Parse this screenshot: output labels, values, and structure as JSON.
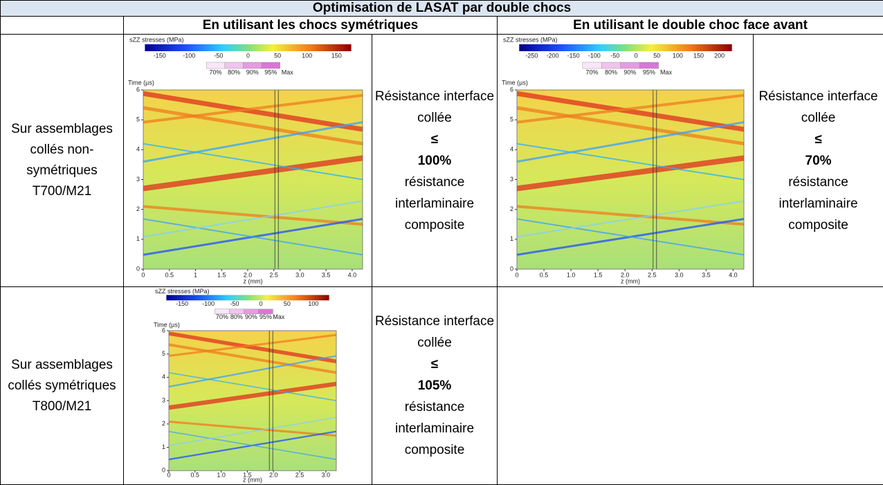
{
  "header": {
    "title": "Optimisation de LASAT par double chocs"
  },
  "table": {
    "column_headers": [
      "En utilisant les chocs symétriques",
      "En utilisant le double choc face avant"
    ],
    "rows": [
      {
        "label": "Sur assemblages collés non-symétriques T700/M21",
        "cells": [
          {
            "plot": {
              "title": "sZZ stresses (MPa)",
              "colorbar_lim": [
                -175,
                175
              ],
              "colorbar_ticks": [
                -150,
                -100,
                -50,
                0,
                50,
                100,
                150
              ],
              "threshold_labels": [
                "70%",
                "80%",
                "90%",
                "95%",
                "Max"
              ],
              "y_label": "Time (µs)",
              "ylim": [
                0,
                6
              ],
              "yticks": [
                0,
                1,
                2,
                3,
                4,
                5,
                6
              ],
              "x_label": "z (mm)",
              "xlim": [
                0,
                4.2
              ],
              "xticks": [
                0,
                0.5,
                1,
                1.5,
                {
                  "value": 2,
                  "label": "2.0"
                },
                2.5,
                {
                  "value": 3,
                  "label": "3.0"
                },
                3.5,
                {
                  "value": 4,
                  "label": "4.0"
                }
              ]
            },
            "result": {
              "before": "Résistance interface collée",
              "sign": "≤",
              "value": "100%",
              "after": "résistance interlaminaire composite"
            }
          },
          {
            "plot": {
              "title": "sZZ stresses (MPa)",
              "colorbar_lim": [
                -280,
                230
              ],
              "colorbar_ticks": [
                -250,
                -200,
                -150,
                -100,
                -50,
                0,
                50,
                100,
                150,
                200
              ],
              "threshold_labels": [
                "70%",
                "80%",
                "90%",
                "95%",
                "Max"
              ],
              "y_label": "Time (µs)",
              "ylim": [
                0,
                6
              ],
              "yticks": [
                0,
                1,
                2,
                3,
                4,
                5,
                6
              ],
              "x_label": "z (mm)",
              "xlim": [
                0,
                4.2
              ],
              "xticks": [
                0,
                0.5,
                {
                  "value": 1,
                  "label": "1.0"
                },
                1.5,
                {
                  "value": 2,
                  "label": "2.0"
                },
                2.5,
                {
                  "value": 3,
                  "label": "3.0"
                },
                3.5,
                {
                  "value": 4,
                  "label": "4.0"
                }
              ]
            },
            "result": {
              "before": "Résistance interface collée",
              "sign": "≤",
              "value": "70%",
              "after": "résistance interlaminaire composite"
            }
          }
        ]
      },
      {
        "label": "Sur assemblages collés symétriques T800/M21",
        "cells": [
          {
            "plot": {
              "title": "sZZ stresses (MPa)",
              "colorbar_lim": [
                -180,
                130
              ],
              "colorbar_ticks": [
                -150,
                -100,
                -50,
                0,
                50,
                100
              ],
              "threshold_labels": [
                "70%",
                "80%",
                "90%",
                "95%",
                "Max"
              ],
              "y_label": "Time (µs)",
              "ylim": [
                0,
                6
              ],
              "yticks": [
                0,
                1,
                2,
                3,
                4,
                5,
                6
              ],
              "x_label": "z (mm)",
              "xlim": [
                0,
                3.2
              ],
              "xticks": [
                0,
                0.5,
                {
                  "value": 1,
                  "label": "1.0"
                },
                1.5,
                {
                  "value": 2,
                  "label": "2.0"
                },
                2.5,
                {
                  "value": 3,
                  "label": "3.0"
                }
              ]
            },
            "result": {
              "before": "Résistance interface collée",
              "sign": "≤",
              "value": "105%",
              "after": "résistance interlaminaire composite"
            }
          }
        ]
      }
    ]
  }
}
